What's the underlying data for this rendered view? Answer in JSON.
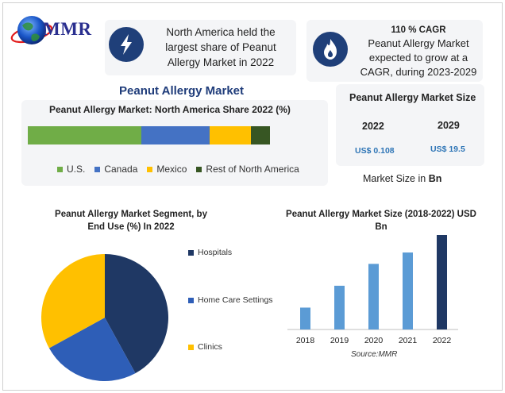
{
  "brand": {
    "logo_text": "MMR"
  },
  "highlights": {
    "region": "North America held the largest share of Peanut Allergy Market in 2022",
    "cagr_title": "110 % CAGR",
    "cagr_text": "Peanut Allergy Market expected to grow at a CAGR, during 2023-2029"
  },
  "colors": {
    "accent": "#1f3c7a",
    "us": "#70ad47",
    "canada": "#4472c4",
    "mexico": "#ffc000",
    "rest": "#375623",
    "bars": "#5b9bd5",
    "bar_latest": "#1f3864"
  },
  "main_title": "Peanut Allergy Market",
  "market_size": {
    "title": "Peanut Allergy Market Size",
    "year_a": "2022",
    "value_a": "US$ 0.108",
    "year_b": "2029",
    "value_b": "US$ 19.5",
    "unit_prefix": "Market Size in",
    "unit": "Bn"
  },
  "icons": {
    "highlight_1": "lightning-icon",
    "highlight_2": "flame-icon",
    "logo": "globe-icon"
  },
  "chart_data": [
    {
      "type": "bar",
      "title": "Peanut Allergy Market: North America Share 2022 (%)",
      "stacked": true,
      "orientation": "horizontal",
      "series": [
        {
          "name": "U.S.",
          "values": [
            47
          ],
          "color": "#70ad47"
        },
        {
          "name": "Canada",
          "values": [
            28
          ],
          "color": "#4472c4"
        },
        {
          "name": "Mexico",
          "values": [
            17
          ],
          "color": "#ffc000"
        },
        {
          "name": "Rest of North America",
          "values": [
            8
          ],
          "color": "#375623"
        }
      ],
      "legend": "bottom"
    },
    {
      "type": "pie",
      "title": "Peanut Allergy Market Segment, by End Use (%) In 2022",
      "labels": [
        "Hospitals",
        "Home Care Settings",
        "Clinics"
      ],
      "values": [
        42,
        25,
        33
      ],
      "colors": [
        "#1f3864",
        "#2e5eb7",
        "#ffc000"
      ],
      "legend": "right"
    },
    {
      "type": "bar",
      "title": "Peanut Allergy Market Size (2018-2022) USD Bn",
      "categories": [
        "2018",
        "2019",
        "2020",
        "2021",
        "2022"
      ],
      "values": [
        0.025,
        0.05,
        0.075,
        0.088,
        0.108
      ],
      "colors": [
        "#5b9bd5",
        "#5b9bd5",
        "#5b9bd5",
        "#5b9bd5",
        "#1f3864"
      ],
      "source": "Source:MMR",
      "ylim": [
        0,
        0.108
      ]
    }
  ]
}
